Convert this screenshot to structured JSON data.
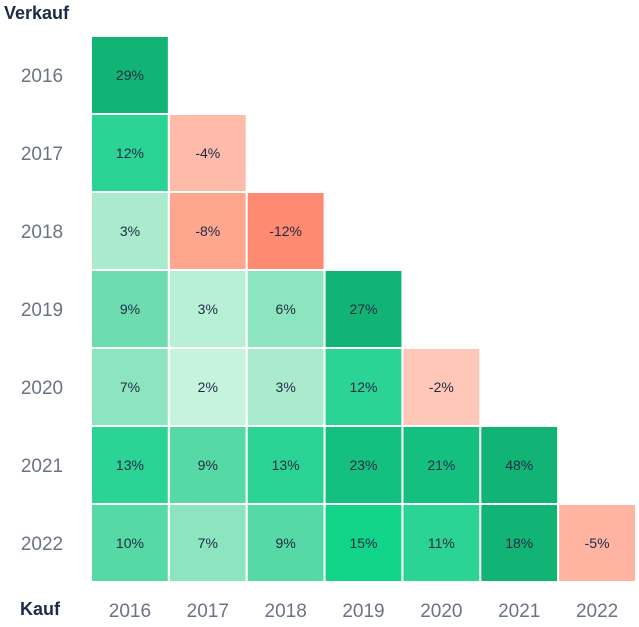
{
  "chart_data": {
    "type": "heatmap",
    "y_axis_title": "Verkauf",
    "x_axis_title": "Kauf",
    "x_categories": [
      "2016",
      "2017",
      "2018",
      "2019",
      "2020",
      "2021",
      "2022"
    ],
    "y_categories": [
      "2016",
      "2017",
      "2018",
      "2019",
      "2020",
      "2021",
      "2022"
    ],
    "values": [
      [
        29,
        null,
        null,
        null,
        null,
        null,
        null
      ],
      [
        12,
        -4,
        null,
        null,
        null,
        null,
        null
      ],
      [
        3,
        -8,
        -12,
        null,
        null,
        null,
        null
      ],
      [
        9,
        3,
        6,
        27,
        null,
        null,
        null
      ],
      [
        7,
        2,
        3,
        12,
        -2,
        null,
        null
      ],
      [
        13,
        9,
        13,
        23,
        21,
        48,
        null
      ],
      [
        10,
        7,
        9,
        15,
        11,
        18,
        -5
      ]
    ],
    "labels": [
      [
        "29%",
        "",
        "",
        "",
        "",
        "",
        ""
      ],
      [
        "12%",
        "-4%",
        "",
        "",
        "",
        "",
        ""
      ],
      [
        "3%",
        "-8%",
        "-12%",
        "",
        "",
        "",
        ""
      ],
      [
        "9%",
        "3%",
        "6%",
        "27%",
        "",
        "",
        ""
      ],
      [
        "7%",
        "2%",
        "3%",
        "12%",
        "-2%",
        "",
        ""
      ],
      [
        "13%",
        "9%",
        "13%",
        "23%",
        "21%",
        "48%",
        ""
      ],
      [
        "10%",
        "7%",
        "9%",
        "15%",
        "11%",
        "18%",
        "-5%"
      ]
    ],
    "cell_colors": [
      [
        "#12b476",
        "",
        "",
        "",
        "",
        "",
        ""
      ],
      [
        "#2bd394",
        "#ffbbaa",
        "",
        "",
        "",
        "",
        ""
      ],
      [
        "#aaebcd",
        "#ffa68f",
        "#ff8a72",
        "",
        "",
        "",
        ""
      ],
      [
        "#6dddb0",
        "#b8f0d7",
        "#8de5bf",
        "#12b476",
        "",
        "",
        ""
      ],
      [
        "#8de5bf",
        "#c5f3de",
        "#aaebcd",
        "#2bd394",
        "#ffc7b8",
        "",
        ""
      ],
      [
        "#2bd394",
        "#57d9a5",
        "#2bd394",
        "#14c07f",
        "#14c07f",
        "#12b476",
        ""
      ],
      [
        "#57d9a5",
        "#8de5bf",
        "#57d9a5",
        "#12d58a",
        "#2bd394",
        "#12b476",
        "#ffb4a2"
      ]
    ]
  }
}
